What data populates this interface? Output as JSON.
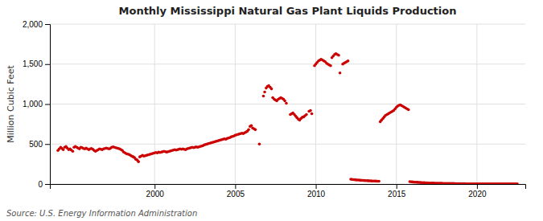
{
  "chart_data": {
    "type": "scatter",
    "title": "Monthly Mississippi Natural Gas Plant Liquids Production",
    "ylabel": "Million Cubic Feet",
    "annotations": [
      "Source: U.S. Energy Information Administration"
    ],
    "color": "#cc0000",
    "grid": true,
    "xlim": [
      1993.5,
      2023.0
    ],
    "xticks": [
      2000,
      2005,
      2010,
      2015,
      2020
    ],
    "ylim": [
      0,
      2000
    ],
    "yticks": [
      0,
      500,
      {
        "value": 1000,
        "label": "1,000"
      },
      {
        "value": 1500,
        "label": "1,500"
      },
      {
        "value": 2000,
        "label": "2,000"
      }
    ],
    "x": [
      1994.0,
      1994.08,
      1994.17,
      1994.25,
      1994.33,
      1994.42,
      1994.5,
      1994.58,
      1994.67,
      1994.75,
      1994.83,
      1994.92,
      1995.0,
      1995.08,
      1995.17,
      1995.25,
      1995.33,
      1995.42,
      1995.5,
      1995.58,
      1995.67,
      1995.75,
      1995.83,
      1995.92,
      1996.0,
      1996.08,
      1996.17,
      1996.25,
      1996.33,
      1996.42,
      1996.5,
      1996.58,
      1996.67,
      1996.75,
      1996.83,
      1996.92,
      1997.0,
      1997.08,
      1997.17,
      1997.25,
      1997.33,
      1997.42,
      1997.5,
      1997.58,
      1997.67,
      1997.75,
      1997.83,
      1997.92,
      1998.0,
      1998.08,
      1998.17,
      1998.25,
      1998.33,
      1998.42,
      1998.5,
      1998.58,
      1998.67,
      1998.75,
      1998.83,
      1998.92,
      1999.0,
      1999.08,
      1999.17,
      1999.25,
      1999.33,
      1999.42,
      1999.5,
      1999.58,
      1999.67,
      1999.75,
      1999.83,
      1999.92,
      2000.0,
      2000.08,
      2000.17,
      2000.25,
      2000.33,
      2000.42,
      2000.5,
      2000.58,
      2000.67,
      2000.75,
      2000.83,
      2000.92,
      2001.0,
      2001.08,
      2001.17,
      2001.25,
      2001.33,
      2001.42,
      2001.5,
      2001.58,
      2001.67,
      2001.75,
      2001.83,
      2001.92,
      2002.0,
      2002.08,
      2002.17,
      2002.25,
      2002.33,
      2002.42,
      2002.5,
      2002.58,
      2002.67,
      2002.75,
      2002.83,
      2002.92,
      2003.0,
      2003.08,
      2003.17,
      2003.25,
      2003.33,
      2003.42,
      2003.5,
      2003.58,
      2003.67,
      2003.75,
      2003.83,
      2003.92,
      2004.0,
      2004.08,
      2004.17,
      2004.25,
      2004.33,
      2004.42,
      2004.5,
      2004.58,
      2004.67,
      2004.75,
      2004.83,
      2004.92,
      2005.0,
      2005.08,
      2005.17,
      2005.25,
      2005.33,
      2005.42,
      2005.5,
      2005.58,
      2005.67,
      2005.75,
      2005.83,
      2005.92,
      2006.0,
      2006.08,
      2006.17,
      2006.25,
      2006.5,
      2006.75,
      2006.83,
      2006.92,
      2007.0,
      2007.08,
      2007.17,
      2007.25,
      2007.33,
      2007.42,
      2007.5,
      2007.58,
      2007.67,
      2007.75,
      2007.83,
      2007.92,
      2008.0,
      2008.08,
      2008.17,
      2008.42,
      2008.5,
      2008.58,
      2008.67,
      2008.75,
      2008.83,
      2008.92,
      2009.0,
      2009.08,
      2009.17,
      2009.25,
      2009.33,
      2009.42,
      2009.58,
      2009.67,
      2009.75,
      2009.92,
      2010.0,
      2010.08,
      2010.17,
      2010.25,
      2010.33,
      2010.42,
      2010.5,
      2010.58,
      2010.67,
      2010.75,
      2010.83,
      2010.92,
      2011.0,
      2011.08,
      2011.17,
      2011.25,
      2011.33,
      2011.42,
      2011.5,
      2011.67,
      2011.75,
      2011.83,
      2011.92,
      2012.0,
      2012.17,
      2012.25,
      2012.33,
      2012.42,
      2012.5,
      2012.58,
      2012.67,
      2012.75,
      2012.83,
      2012.92,
      2013.0,
      2013.08,
      2013.17,
      2013.25,
      2013.33,
      2013.42,
      2013.5,
      2013.58,
      2013.67,
      2013.75,
      2013.83,
      2013.92,
      2014.0,
      2014.08,
      2014.17,
      2014.25,
      2014.33,
      2014.42,
      2014.5,
      2014.58,
      2014.67,
      2014.75,
      2014.83,
      2014.92,
      2015.0,
      2015.08,
      2015.17,
      2015.25,
      2015.33,
      2015.42,
      2015.5,
      2015.58,
      2015.67,
      2015.75,
      2015.83,
      2015.92,
      2016.0,
      2016.08,
      2016.17,
      2016.25,
      2016.33,
      2016.42,
      2016.5,
      2016.58,
      2016.67,
      2016.75,
      2016.83,
      2016.92,
      2017.0,
      2017.08,
      2017.17,
      2017.25,
      2017.33,
      2017.42,
      2017.5,
      2017.58,
      2017.67,
      2017.75,
      2017.83,
      2017.92,
      2018.0,
      2018.08,
      2018.17,
      2018.25,
      2018.33,
      2018.42,
      2018.5,
      2018.58,
      2018.67,
      2018.75,
      2018.83,
      2018.92,
      2019.0,
      2019.08,
      2019.17,
      2019.25,
      2019.33,
      2019.42,
      2019.5,
      2019.58,
      2019.67,
      2019.75,
      2019.83,
      2019.92,
      2020.0,
      2020.08,
      2020.17,
      2020.25,
      2020.33,
      2020.42,
      2020.5,
      2020.58,
      2020.67,
      2020.75,
      2020.83,
      2020.92,
      2021.0,
      2021.08,
      2021.17,
      2021.25,
      2021.33,
      2021.42,
      2021.5,
      2021.58,
      2021.67,
      2021.75,
      2021.83,
      2021.92,
      2022.0,
      2022.08,
      2022.17,
      2022.25,
      2022.33,
      2022.42,
      2022.5
    ],
    "values": [
      420,
      440,
      460,
      445,
      430,
      460,
      470,
      450,
      430,
      440,
      425,
      410,
      460,
      470,
      460,
      450,
      440,
      460,
      455,
      445,
      440,
      450,
      440,
      430,
      440,
      445,
      435,
      420,
      410,
      420,
      430,
      440,
      435,
      430,
      440,
      445,
      450,
      445,
      440,
      445,
      460,
      465,
      460,
      455,
      450,
      445,
      440,
      430,
      420,
      400,
      390,
      380,
      375,
      370,
      360,
      350,
      340,
      330,
      310,
      300,
      280,
      340,
      350,
      360,
      350,
      355,
      360,
      365,
      370,
      375,
      380,
      385,
      390,
      395,
      390,
      400,
      395,
      400,
      405,
      410,
      405,
      400,
      405,
      410,
      415,
      420,
      425,
      430,
      425,
      430,
      435,
      440,
      435,
      440,
      435,
      430,
      440,
      445,
      450,
      455,
      460,
      455,
      460,
      465,
      460,
      465,
      470,
      475,
      480,
      490,
      495,
      500,
      505,
      510,
      515,
      520,
      525,
      530,
      535,
      540,
      545,
      550,
      555,
      560,
      565,
      560,
      570,
      575,
      580,
      590,
      595,
      600,
      610,
      615,
      620,
      625,
      630,
      635,
      630,
      640,
      650,
      660,
      680,
      720,
      730,
      700,
      690,
      680,
      500,
      1100,
      1150,
      1200,
      1220,
      1230,
      1210,
      1190,
      1080,
      1060,
      1050,
      1040,
      1060,
      1070,
      1080,
      1070,
      1060,
      1040,
      1010,
      870,
      880,
      890,
      870,
      850,
      830,
      810,
      800,
      820,
      835,
      840,
      855,
      870,
      910,
      920,
      880,
      1480,
      1500,
      1520,
      1540,
      1550,
      1560,
      1550,
      1540,
      1530,
      1510,
      1500,
      1490,
      1480,
      1580,
      1600,
      1620,
      1630,
      1620,
      1610,
      1390,
      1500,
      1510,
      1520,
      1530,
      1540,
      60,
      58,
      56,
      54,
      52,
      50,
      50,
      48,
      46,
      45,
      44,
      43,
      42,
      41,
      40,
      39,
      38,
      38,
      37,
      36,
      35,
      35,
      780,
      800,
      820,
      840,
      860,
      870,
      880,
      890,
      900,
      910,
      920,
      940,
      960,
      975,
      985,
      990,
      980,
      970,
      960,
      950,
      940,
      930,
      30,
      28,
      26,
      24,
      23,
      22,
      21,
      20,
      19,
      18,
      17,
      16,
      15,
      14,
      13,
      12,
      12,
      11,
      11,
      10,
      10,
      10,
      9,
      9,
      9,
      8,
      8,
      8,
      7,
      7,
      7,
      6,
      6,
      6,
      5,
      5,
      5,
      5,
      4,
      4,
      4,
      4,
      3,
      3,
      3,
      3,
      3,
      3,
      3,
      3,
      3,
      3,
      3,
      2,
      2,
      2,
      2,
      2,
      2,
      2,
      2,
      2,
      2,
      2,
      2,
      2,
      2,
      2,
      2,
      2,
      2,
      2,
      2,
      2,
      2,
      2,
      2,
      2,
      2,
      2,
      2
    ]
  }
}
